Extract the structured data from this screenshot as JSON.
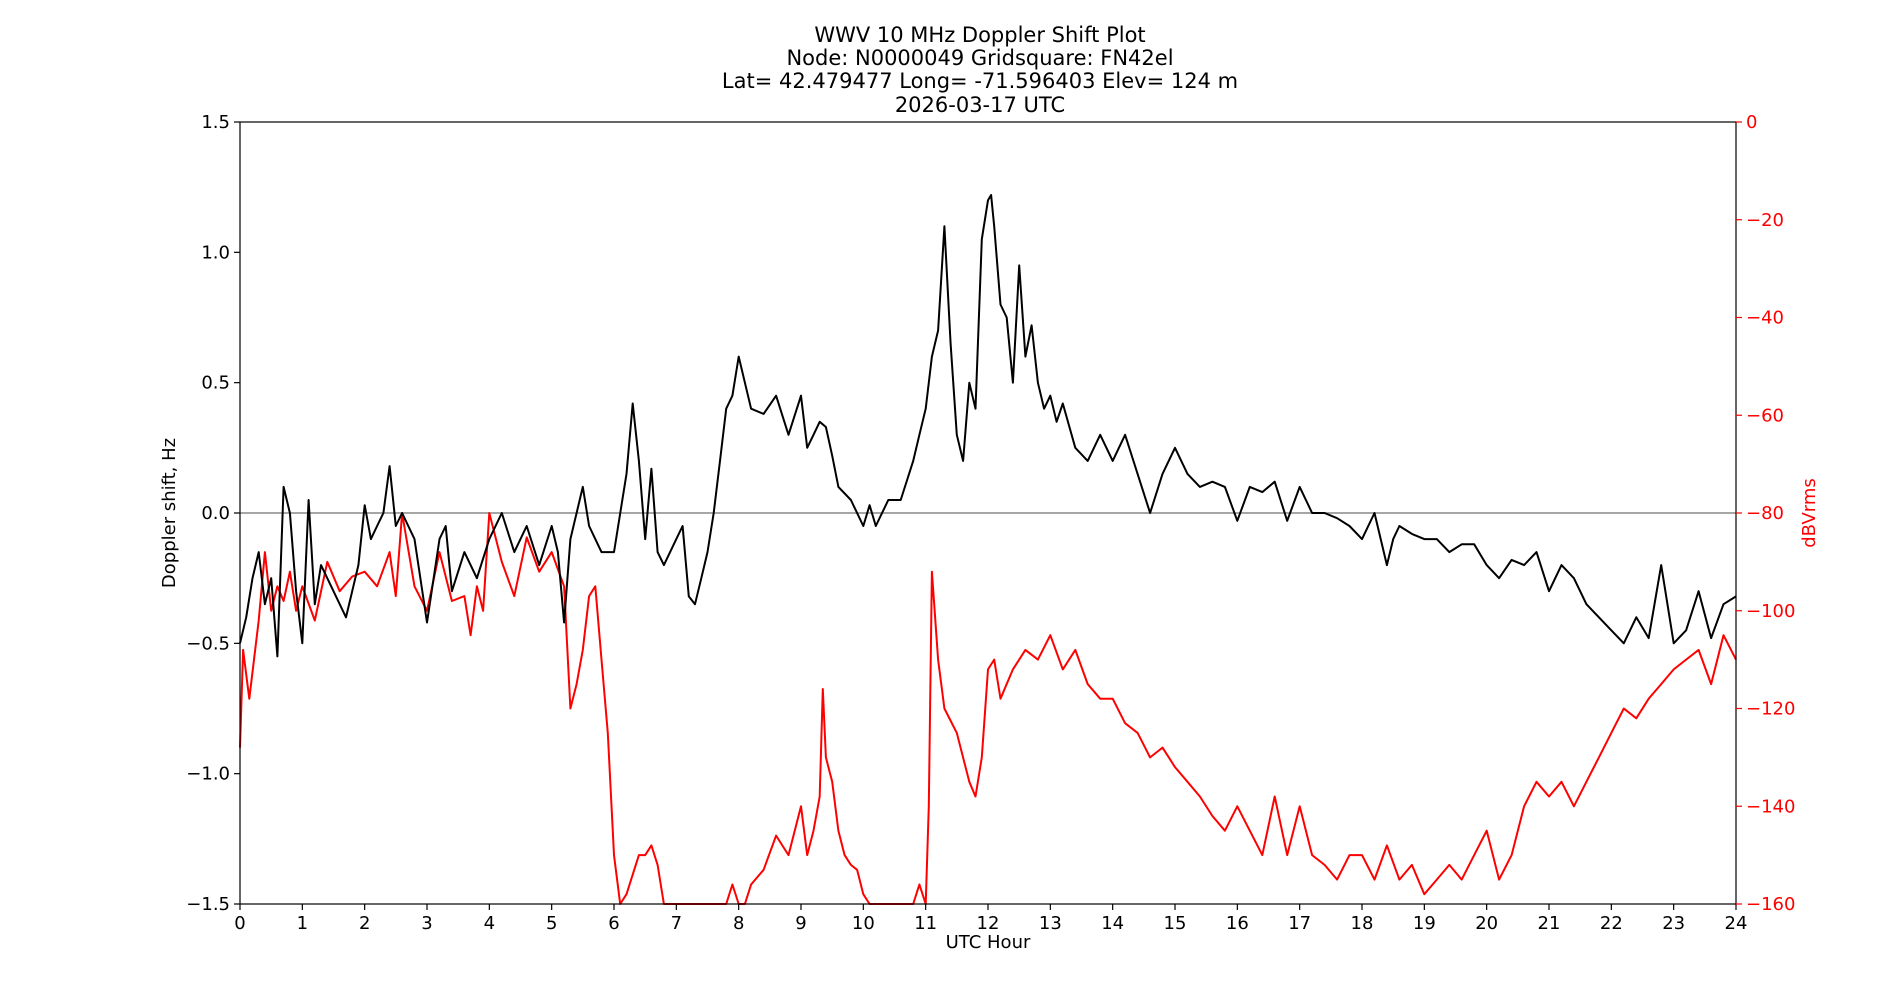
{
  "chart_data": {
    "type": "line",
    "title_lines": [
      "WWV 10 MHz Doppler Shift Plot",
      "Node:  N0000049     Gridsquare:  FN42el",
      "Lat= 42.479477    Long= -71.596403    Elev= 124 m",
      "2026-03-17  UTC"
    ],
    "xlabel": "UTC Hour",
    "ylabel": "Doppler shift, Hz",
    "y2label": "dBVrms",
    "xlim": [
      0,
      24
    ],
    "ylim": [
      -1.5,
      1.5
    ],
    "y2lim": [
      -160,
      0
    ],
    "x_ticks": [
      "0",
      "1",
      "2",
      "3",
      "4",
      "5",
      "6",
      "7",
      "8",
      "9",
      "10",
      "11",
      "12",
      "13",
      "14",
      "15",
      "16",
      "17",
      "18",
      "19",
      "20",
      "21",
      "22",
      "23",
      "24"
    ],
    "y_ticks": [
      "−1.5",
      "−1.0",
      "−0.5",
      "0.0",
      "0.5",
      "1.0",
      "1.5"
    ],
    "y2_ticks": [
      "−160",
      "−140",
      "−120",
      "−100",
      "−80",
      "−60",
      "−40",
      "−20",
      "0"
    ],
    "reference_line_y": 0.0,
    "grid": false,
    "colors": {
      "doppler": "#000000",
      "power": "#ff0000",
      "axes": "#000000",
      "right_axis": "#ff0000",
      "zero_line": "#888888"
    },
    "series": [
      {
        "axis": "left",
        "color": "#000000",
        "x": [
          0,
          0.1,
          0.2,
          0.3,
          0.4,
          0.5,
          0.6,
          0.7,
          0.8,
          0.9,
          1.0,
          1.1,
          1.2,
          1.3,
          1.5,
          1.7,
          1.9,
          2.0,
          2.1,
          2.2,
          2.3,
          2.4,
          2.5,
          2.6,
          2.8,
          3.0,
          3.2,
          3.3,
          3.4,
          3.6,
          3.8,
          4.0,
          4.2,
          4.4,
          4.6,
          4.8,
          5.0,
          5.1,
          5.2,
          5.3,
          5.5,
          5.6,
          5.7,
          5.8,
          6.0,
          6.2,
          6.3,
          6.4,
          6.5,
          6.6,
          6.7,
          6.8,
          7.0,
          7.1,
          7.2,
          7.3,
          7.4,
          7.5,
          7.6,
          7.7,
          7.8,
          7.9,
          8.0,
          8.1,
          8.2,
          8.4,
          8.6,
          8.8,
          9.0,
          9.1,
          9.2,
          9.3,
          9.4,
          9.5,
          9.6,
          9.8,
          10.0,
          10.1,
          10.2,
          10.4,
          10.6,
          10.8,
          10.9,
          11.0,
          11.1,
          11.2,
          11.3,
          11.4,
          11.5,
          11.6,
          11.7,
          11.8,
          11.9,
          12.0,
          12.05,
          12.1,
          12.2,
          12.3,
          12.4,
          12.5,
          12.6,
          12.7,
          12.8,
          12.9,
          13.0,
          13.1,
          13.2,
          13.4,
          13.6,
          13.8,
          14.0,
          14.2,
          14.4,
          14.6,
          14.8,
          15.0,
          15.2,
          15.4,
          15.6,
          15.8,
          16.0,
          16.2,
          16.4,
          16.6,
          16.8,
          17.0,
          17.2,
          17.4,
          17.6,
          17.8,
          18.0,
          18.2,
          18.4,
          18.5,
          18.6,
          18.8,
          19.0,
          19.2,
          19.4,
          19.6,
          19.8,
          20.0,
          20.2,
          20.4,
          20.6,
          20.8,
          21.0,
          21.2,
          21.4,
          21.6,
          21.8,
          22.0,
          22.2,
          22.4,
          22.6,
          22.8,
          23.0,
          23.2,
          23.4,
          23.6,
          23.8,
          24.0
        ],
        "y": [
          -0.5,
          -0.4,
          -0.25,
          -0.15,
          -0.35,
          -0.25,
          -0.55,
          0.1,
          0.0,
          -0.3,
          -0.5,
          0.05,
          -0.35,
          -0.2,
          -0.3,
          -0.4,
          -0.2,
          0.03,
          -0.1,
          -0.05,
          0.0,
          0.18,
          -0.05,
          0.0,
          -0.1,
          -0.42,
          -0.1,
          -0.05,
          -0.3,
          -0.15,
          -0.25,
          -0.1,
          0.0,
          -0.15,
          -0.05,
          -0.2,
          -0.05,
          -0.15,
          -0.42,
          -0.1,
          0.1,
          -0.05,
          -0.1,
          -0.15,
          -0.15,
          0.15,
          0.42,
          0.2,
          -0.1,
          0.17,
          -0.15,
          -0.2,
          -0.1,
          -0.05,
          -0.32,
          -0.35,
          -0.25,
          -0.15,
          0.0,
          0.2,
          0.4,
          0.45,
          0.6,
          0.5,
          0.4,
          0.38,
          0.45,
          0.3,
          0.45,
          0.25,
          0.3,
          0.35,
          0.33,
          0.22,
          0.1,
          0.05,
          -0.05,
          0.03,
          -0.05,
          0.05,
          0.05,
          0.2,
          0.3,
          0.4,
          0.6,
          0.7,
          1.1,
          0.65,
          0.3,
          0.2,
          0.5,
          0.4,
          1.05,
          1.2,
          1.22,
          1.1,
          0.8,
          0.75,
          0.5,
          0.95,
          0.6,
          0.72,
          0.5,
          0.4,
          0.45,
          0.35,
          0.42,
          0.25,
          0.2,
          0.3,
          0.2,
          0.3,
          0.15,
          0.0,
          0.15,
          0.25,
          0.15,
          0.1,
          0.12,
          0.1,
          -0.03,
          0.1,
          0.08,
          0.12,
          -0.03,
          0.1,
          0.0,
          0.0,
          -0.02,
          -0.05,
          -0.1,
          0.0,
          -0.2,
          -0.1,
          -0.05,
          -0.08,
          -0.1,
          -0.1,
          -0.15,
          -0.12,
          -0.12,
          -0.2,
          -0.25,
          -0.18,
          -0.2,
          -0.15,
          -0.3,
          -0.2,
          -0.25,
          -0.35,
          -0.4,
          -0.45,
          -0.5,
          -0.4,
          -0.48,
          -0.2,
          -0.5,
          -0.45,
          -0.3,
          -0.48,
          -0.35,
          -0.32
        ]
      },
      {
        "axis": "right",
        "color": "#ff0000",
        "x": [
          0,
          0.05,
          0.15,
          0.3,
          0.4,
          0.5,
          0.6,
          0.7,
          0.8,
          0.9,
          1.0,
          1.2,
          1.4,
          1.6,
          1.8,
          2.0,
          2.2,
          2.4,
          2.5,
          2.6,
          2.8,
          3.0,
          3.2,
          3.4,
          3.6,
          3.7,
          3.8,
          3.9,
          4.0,
          4.2,
          4.4,
          4.6,
          4.8,
          5.0,
          5.2,
          5.3,
          5.4,
          5.5,
          5.6,
          5.7,
          5.8,
          5.9,
          6.0,
          6.1,
          6.2,
          6.4,
          6.5,
          6.6,
          6.7,
          6.8,
          7.0,
          7.2,
          7.4,
          7.6,
          7.8,
          7.9,
          8.0,
          8.1,
          8.2,
          8.4,
          8.6,
          8.8,
          9.0,
          9.1,
          9.2,
          9.3,
          9.35,
          9.4,
          9.5,
          9.6,
          9.7,
          9.8,
          9.9,
          10.0,
          10.1,
          10.2,
          10.4,
          10.6,
          10.8,
          10.9,
          11.0,
          11.05,
          11.1,
          11.2,
          11.3,
          11.5,
          11.7,
          11.8,
          11.9,
          12.0,
          12.1,
          12.2,
          12.4,
          12.6,
          12.8,
          13.0,
          13.2,
          13.4,
          13.6,
          13.8,
          14.0,
          14.2,
          14.4,
          14.6,
          14.8,
          15.0,
          15.2,
          15.4,
          15.6,
          15.8,
          16.0,
          16.2,
          16.4,
          16.6,
          16.8,
          17.0,
          17.2,
          17.4,
          17.6,
          17.8,
          18.0,
          18.2,
          18.4,
          18.6,
          18.8,
          19.0,
          19.2,
          19.4,
          19.6,
          19.8,
          20.0,
          20.2,
          20.4,
          20.6,
          20.8,
          21.0,
          21.2,
          21.4,
          21.6,
          21.8,
          22.0,
          22.2,
          22.4,
          22.6,
          22.8,
          23.0,
          23.2,
          23.4,
          23.6,
          23.8,
          24.0
        ],
        "y": [
          -128,
          -108,
          -118,
          -102,
          -88,
          -100,
          -95,
          -98,
          -92,
          -100,
          -95,
          -102,
          -90,
          -96,
          -93,
          -92,
          -95,
          -88,
          -97,
          -80,
          -95,
          -100,
          -88,
          -98,
          -97,
          -105,
          -95,
          -100,
          -80,
          -90,
          -97,
          -85,
          -92,
          -88,
          -95,
          -120,
          -115,
          -108,
          -97,
          -95,
          -110,
          -125,
          -150,
          -160,
          -158,
          -150,
          -150,
          -148,
          -152,
          -162,
          -170,
          -168,
          -170,
          -168,
          -160,
          -156,
          -162,
          -160,
          -156,
          -153,
          -146,
          -150,
          -140,
          -150,
          -145,
          -138,
          -116,
          -130,
          -135,
          -145,
          -150,
          -152,
          -153,
          -158,
          -162,
          -165,
          -163,
          -160,
          -162,
          -156,
          -160,
          -140,
          -92,
          -110,
          -120,
          -125,
          -135,
          -138,
          -130,
          -112,
          -110,
          -118,
          -112,
          -108,
          -110,
          -105,
          -112,
          -108,
          -115,
          -118,
          -118,
          -123,
          -125,
          -130,
          -128,
          -132,
          -135,
          -138,
          -142,
          -145,
          -140,
          -145,
          -150,
          -138,
          -150,
          -140,
          -150,
          -152,
          -155,
          -150,
          -150,
          -155,
          -148,
          -155,
          -152,
          -158,
          -155,
          -152,
          -155,
          -150,
          -145,
          -155,
          -150,
          -140,
          -135,
          -138,
          -135,
          -140,
          -135,
          -130,
          -125,
          -120,
          -122,
          -118,
          -115,
          -112,
          -110,
          -108,
          -115,
          -105,
          -110
        ]
      }
    ]
  }
}
